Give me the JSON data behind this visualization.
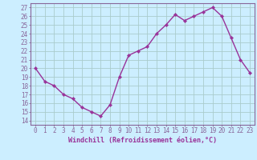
{
  "x": [
    0,
    1,
    2,
    3,
    4,
    5,
    6,
    7,
    8,
    9,
    10,
    11,
    12,
    13,
    14,
    15,
    16,
    17,
    18,
    19,
    20,
    21,
    22,
    23
  ],
  "y": [
    20,
    18.5,
    18,
    17,
    16.5,
    15.5,
    15,
    14.5,
    15.8,
    19,
    21.5,
    22,
    22.5,
    24,
    25,
    26.2,
    25.5,
    26,
    26.5,
    27,
    26,
    23.5,
    21,
    19.5
  ],
  "line_color": "#993399",
  "marker": "D",
  "markersize": 2.2,
  "linewidth": 1.0,
  "bg_color": "#cceeff",
  "grid_color": "#aacccc",
  "xlabel": "Windchill (Refroidissement éolien,°C)",
  "xlabel_fontsize": 6.0,
  "xtick_labels": [
    "0",
    "1",
    "2",
    "3",
    "4",
    "5",
    "6",
    "7",
    "8",
    "9",
    "10",
    "11",
    "12",
    "13",
    "14",
    "15",
    "16",
    "17",
    "18",
    "19",
    "20",
    "21",
    "22",
    "23"
  ],
  "ytick_min": 14,
  "ytick_max": 27,
  "ytick_step": 1,
  "tick_fontsize": 5.5,
  "spine_color": "#886699",
  "xlabel_color": "#993399"
}
